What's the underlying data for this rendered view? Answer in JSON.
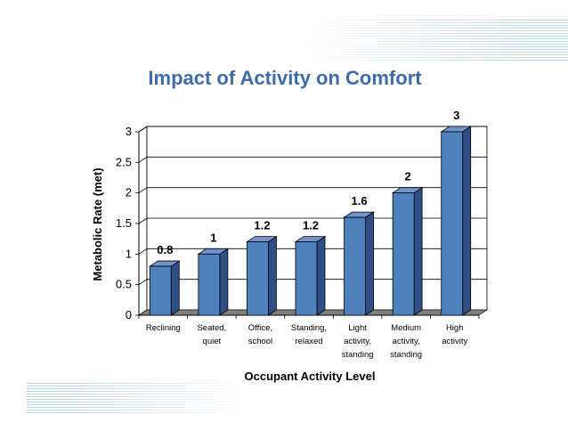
{
  "chart_data": {
    "type": "bar",
    "title": "Impact of Activity on Comfort",
    "xlabel": "Occupant Activity Level",
    "ylabel": "Metabolic Rate (met)",
    "ylim": [
      0,
      3
    ],
    "yticks": [
      "0",
      "0.5",
      "1",
      "1.5",
      "2",
      "2.5",
      "3"
    ],
    "grid": true,
    "categories": [
      [
        "Reclining"
      ],
      [
        "Seated,",
        "quiet"
      ],
      [
        "Office,",
        "school"
      ],
      [
        "Standing,",
        "relaxed"
      ],
      [
        "Light",
        "activity,",
        "standing"
      ],
      [
        "Medium",
        "activity,",
        "standing"
      ],
      [
        "High",
        "activity"
      ]
    ],
    "values": [
      0.8,
      1,
      1.2,
      1.2,
      1.6,
      2,
      3
    ],
    "data_labels": [
      "0.8",
      "1",
      "1.2",
      "1.2",
      "1.6",
      "2",
      "3"
    ],
    "colors": {
      "bar_front": "#4f81bd",
      "bar_side": "#2d4f86",
      "bar_top": "#6f95cc",
      "floor": "#7f7f7f",
      "title": "#3d6ca8"
    }
  }
}
